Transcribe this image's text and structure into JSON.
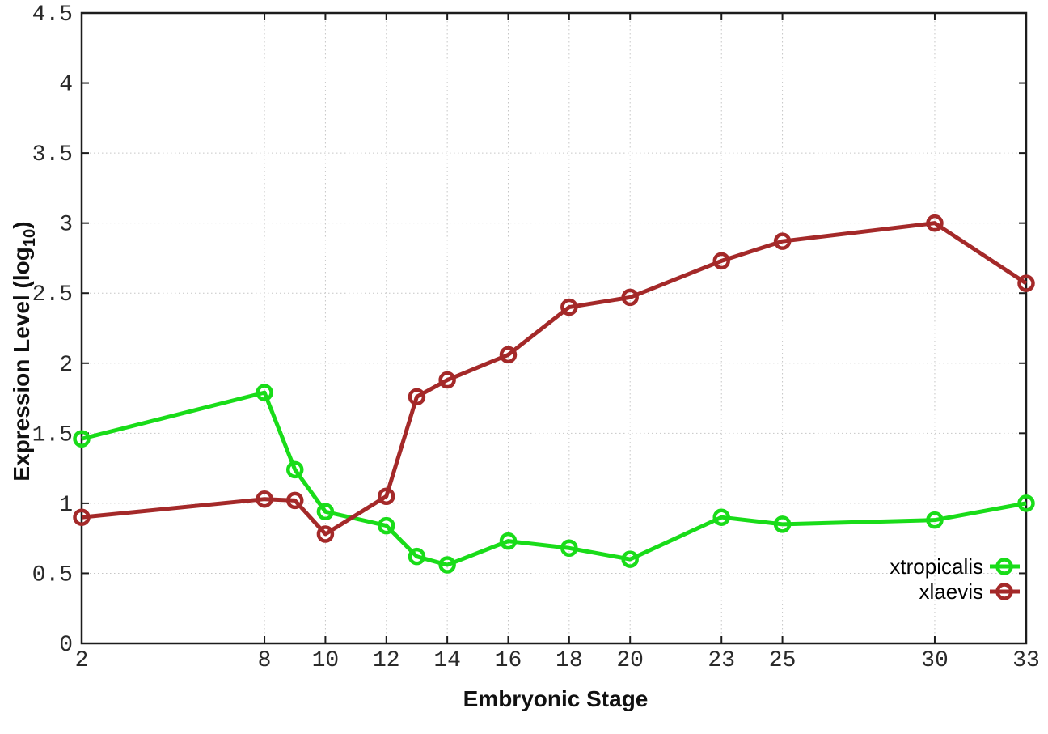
{
  "chart_data": {
    "type": "line",
    "title": "",
    "xlabel": "Embryonic Stage",
    "ylabel_main": "Expression Level (log",
    "ylabel_sub": "10",
    "ylabel_close": ")",
    "xlim": [
      2,
      33
    ],
    "ylim": [
      0,
      4.5
    ],
    "x_ticks": [
      2,
      8,
      10,
      12,
      14,
      16,
      18,
      20,
      23,
      25,
      30,
      33
    ],
    "x_tick_labels": [
      "2",
      "8",
      "10",
      "12",
      "14",
      "16",
      "18",
      "20",
      "23",
      "25",
      "30",
      "33"
    ],
    "y_ticks": [
      0,
      0.5,
      1,
      1.5,
      2,
      2.5,
      3,
      3.5,
      4,
      4.5
    ],
    "y_tick_labels": [
      "0",
      "0.5",
      "1",
      "1.5",
      "2",
      "2.5",
      "3",
      "3.5",
      "4",
      "4.5"
    ],
    "grid": true,
    "legend_position": "bottom-right",
    "x": [
      2,
      8,
      9,
      10,
      12,
      13,
      14,
      16,
      18,
      20,
      23,
      25,
      30,
      33
    ],
    "series": [
      {
        "name": "xtropicalis",
        "color": "#19dc19",
        "values": [
          1.46,
          1.79,
          1.24,
          0.94,
          0.84,
          0.62,
          0.56,
          0.73,
          0.68,
          0.6,
          0.9,
          0.85,
          0.88,
          1.0
        ]
      },
      {
        "name": "xlaevis",
        "color": "#a42929",
        "values": [
          0.9,
          1.03,
          1.02,
          0.78,
          1.05,
          1.76,
          1.88,
          2.06,
          2.4,
          2.47,
          2.73,
          2.87,
          3.0,
          2.57
        ]
      }
    ]
  },
  "style_colors": {
    "grid": "#c6c6c6",
    "border": "#1c1c1c",
    "tick_text": "#2a2a2a",
    "legend_text": "#000000"
  }
}
